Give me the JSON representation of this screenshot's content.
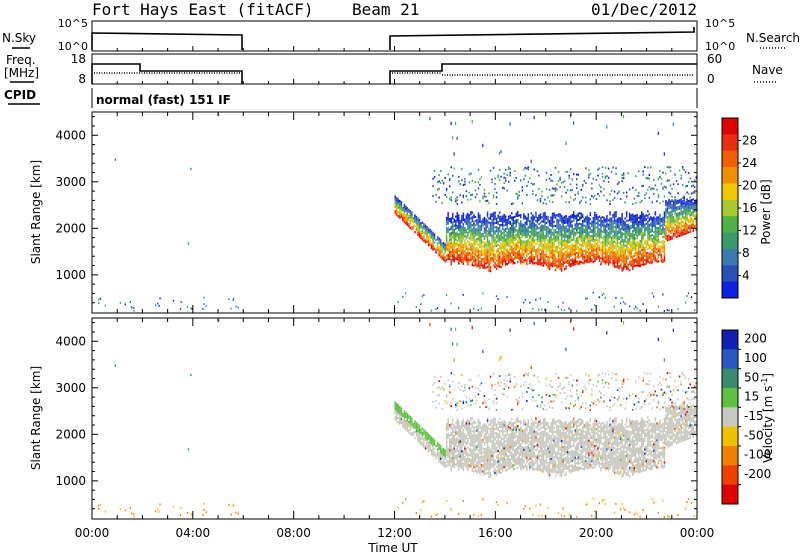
{
  "header": {
    "station": "Fort Hays East (fitACF)",
    "beam": "Beam 21",
    "date": "01/Dec/2012"
  },
  "top_panels": {
    "nsky": {
      "label": "N.Sky",
      "ticks": [
        "10^5",
        "10^0"
      ]
    },
    "nsearch": {
      "label": "N.Search",
      "ticks": [
        "10^5",
        "10^0"
      ]
    },
    "freq": {
      "label_line1": "Freq.",
      "label_line2": "[MHz]",
      "ticks": [
        "18",
        "8"
      ]
    },
    "nave": {
      "label": "Nave",
      "ticks": [
        "60",
        "0"
      ]
    },
    "cpid": {
      "label": "CPID",
      "value": "normal (fast) 151 IF"
    }
  },
  "chart_data": [
    {
      "type": "heatmap",
      "panel": "power",
      "ylabel": "Slant Range [km]",
      "xlabel": "",
      "ylim": [
        180,
        4500
      ],
      "xlim": [
        0,
        24
      ],
      "y_ticks": [
        1000,
        2000,
        3000,
        4000
      ],
      "colorbar": {
        "label": "Power [dB]",
        "range": [
          0,
          32
        ],
        "ticks": [
          4,
          8,
          12,
          16,
          20,
          24,
          28
        ],
        "colors": [
          "#1020e0",
          "#2850b8",
          "#3a7ab0",
          "#3a9a6a",
          "#50b048",
          "#a8c830",
          "#f0c800",
          "#f09000",
          "#f06000",
          "#e83010",
          "#e00000"
        ]
      }
    },
    {
      "type": "heatmap",
      "panel": "velocity",
      "ylabel": "Slant Range [km]",
      "xlabel": "Time UT",
      "ylim": [
        180,
        4500
      ],
      "xlim": [
        0,
        24
      ],
      "y_ticks": [
        1000,
        2000,
        3000,
        4000
      ],
      "x_ticks": [
        "00:00",
        "04:00",
        "08:00",
        "12:00",
        "16:00",
        "20:00",
        "00:00"
      ],
      "colorbar": {
        "label": "Velocity [m s",
        "label_sup": "-1",
        "label_end": "]",
        "ticks": [
          "200",
          "100",
          "50",
          "15",
          "-15",
          "-50",
          "-100",
          "-200"
        ],
        "colors": [
          "#1020b0",
          "#2858c0",
          "#3a8a70",
          "#60c040",
          "#c8c8c0",
          "#f0c000",
          "#f08000",
          "#f04000",
          "#e00000"
        ]
      }
    }
  ]
}
